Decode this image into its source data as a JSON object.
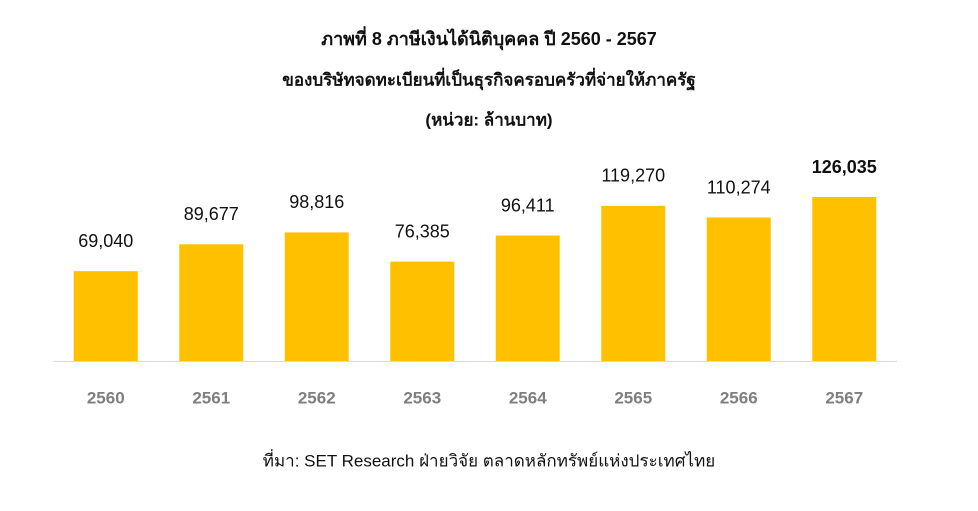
{
  "chart_data": {
    "type": "bar",
    "title": "ภาพที่ 8 ภาษีเงินได้นิติบุคคล ปี 2560 - 2567",
    "subtitle": "ของบริษัทจดทะเบียนที่เป็นธุรกิจครอบครัวที่จ่ายให้ภาครัฐ",
    "unit_note": "(หน่วย: ล้านบาท)",
    "categories": [
      "2560",
      "2561",
      "2562",
      "2563",
      "2564",
      "2565",
      "2566",
      "2567"
    ],
    "values": [
      69040,
      89677,
      98816,
      76385,
      96411,
      119270,
      110274,
      126035
    ],
    "value_labels": [
      "69,040",
      "89,677",
      "98,816",
      "76,385",
      "96,411",
      "119,270",
      "110,274",
      "126,035"
    ],
    "color": "#ffc000",
    "source": "ที่มา: SET Research ฝ่ายวิจัย ตลาดหลักทรัพย์แห่งประเทศไทย"
  }
}
